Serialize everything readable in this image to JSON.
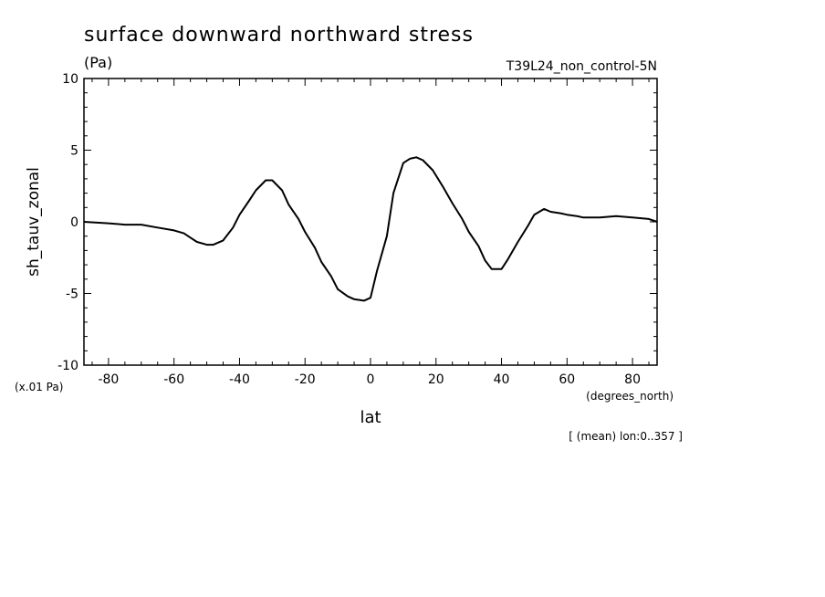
{
  "chart_data": {
    "type": "line",
    "title": "surface downward northward stress",
    "units_label": "(Pa)",
    "run_label": "T39L24_non_control-5N",
    "ylabel": "sh_tauv_zonal",
    "xlabel": "lat",
    "x_units": "(degrees_north)",
    "y_scale_note": "(x.01 Pa)",
    "footnote": "[ (mean) lon:0..357 ]",
    "xlim": [
      -87.5,
      87.5
    ],
    "ylim": [
      -10,
      10
    ],
    "x_ticks": [
      -80,
      -60,
      -40,
      -20,
      0,
      20,
      40,
      60,
      80
    ],
    "x_tick_labels": [
      "-80",
      "-60",
      "-40",
      "-20",
      "0",
      "20",
      "40",
      "60",
      "80"
    ],
    "y_ticks": [
      -10,
      -5,
      0,
      5,
      10
    ],
    "y_tick_labels": [
      "-10",
      "-5",
      "0",
      "5",
      "10"
    ],
    "line_color": "#000000",
    "series": [
      {
        "x": [
          -87.5,
          -80,
          -75,
          -70,
          -65,
          -60,
          -57,
          -55,
          -53,
          -50,
          -48,
          -45,
          -42,
          -40,
          -37,
          -35,
          -32,
          -30,
          -27,
          -25,
          -22,
          -20,
          -17,
          -15,
          -12,
          -10,
          -7,
          -5,
          -2,
          0,
          2,
          5,
          7,
          10,
          12,
          14,
          16,
          19,
          22,
          25,
          28,
          30,
          33,
          35,
          37,
          40,
          42,
          45,
          48,
          50,
          53,
          55,
          58,
          60,
          63,
          65,
          70,
          75,
          80,
          85,
          87.5
        ],
        "y": [
          0,
          -0.1,
          -0.2,
          -0.2,
          -0.4,
          -0.6,
          -0.8,
          -1.1,
          -1.4,
          -1.6,
          -1.6,
          -1.3,
          -0.4,
          0.5,
          1.5,
          2.2,
          2.9,
          2.9,
          2.2,
          1.2,
          0.2,
          -0.7,
          -1.8,
          -2.8,
          -3.8,
          -4.7,
          -5.2,
          -5.4,
          -5.5,
          -5.3,
          -3.4,
          -1.0,
          2.0,
          4.1,
          4.4,
          4.5,
          4.3,
          3.6,
          2.5,
          1.3,
          0.2,
          -0.7,
          -1.7,
          -2.7,
          -3.3,
          -3.3,
          -2.6,
          -1.4,
          -0.3,
          0.5,
          0.9,
          0.7,
          0.6,
          0.5,
          0.4,
          0.3,
          0.3,
          0.4,
          0.3,
          0.2,
          0.0
        ]
      }
    ]
  }
}
